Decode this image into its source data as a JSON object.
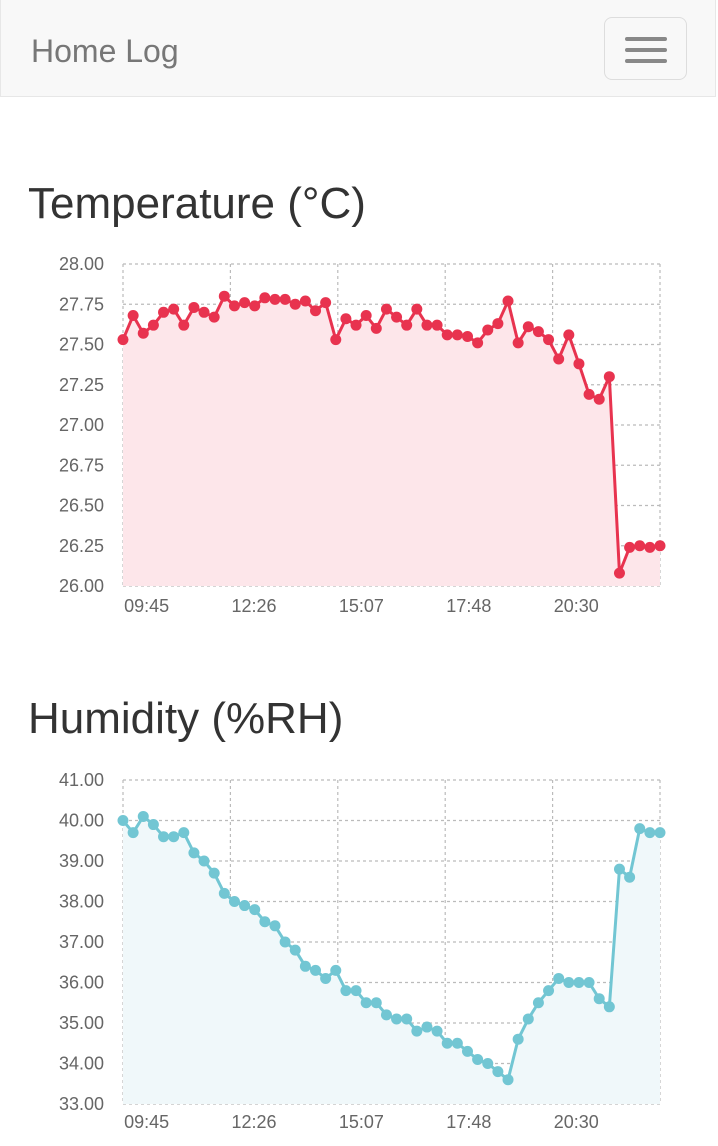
{
  "navbar": {
    "brand": "Home Log",
    "menu_icon": "hamburger-menu-icon"
  },
  "sections": [
    {
      "title": "Temperature (°C)"
    },
    {
      "title": "Humidity (%RH)"
    }
  ],
  "chart_data": [
    {
      "type": "area",
      "title": "Temperature (°C)",
      "xlabel": "",
      "ylabel": "",
      "ylim": [
        26.0,
        28.0
      ],
      "yticks": [
        "28.00",
        "27.75",
        "27.50",
        "27.25",
        "27.00",
        "26.75",
        "26.50",
        "26.25",
        "26.00"
      ],
      "xticks": [
        "09:45",
        "12:26",
        "15:07",
        "17:48",
        "20:30"
      ],
      "grid": true,
      "colors": {
        "line": "#e8334f",
        "fill": "#fde6ea"
      },
      "series": [
        {
          "values": [
            27.53,
            27.68,
            27.57,
            27.62,
            27.7,
            27.72,
            27.62,
            27.73,
            27.7,
            27.67,
            27.8,
            27.74,
            27.76,
            27.74,
            27.79,
            27.78,
            27.78,
            27.75,
            27.77,
            27.71,
            27.76,
            27.53,
            27.66,
            27.62,
            27.68,
            27.6,
            27.72,
            27.67,
            27.62,
            27.72,
            27.62,
            27.62,
            27.56,
            27.56,
            27.55,
            27.51,
            27.59,
            27.63,
            27.77,
            27.51,
            27.61,
            27.58,
            27.53,
            27.41,
            27.56,
            27.38,
            27.19,
            27.16,
            27.3,
            26.08,
            26.24,
            26.25,
            26.24,
            26.25
          ]
        }
      ]
    },
    {
      "type": "area",
      "title": "Humidity (%RH)",
      "xlabel": "",
      "ylabel": "",
      "ylim": [
        33.0,
        41.0
      ],
      "yticks": [
        "41.00",
        "40.00",
        "39.00",
        "38.00",
        "37.00",
        "36.00",
        "35.00",
        "34.00",
        "33.00"
      ],
      "xticks": [
        "09:45",
        "12:26",
        "15:07",
        "17:48",
        "20:30"
      ],
      "grid": true,
      "colors": {
        "line": "#72c6d3",
        "fill": "#f0f8fa"
      },
      "series": [
        {
          "values": [
            40.0,
            39.7,
            40.1,
            39.9,
            39.6,
            39.6,
            39.7,
            39.2,
            39.0,
            38.7,
            38.2,
            38.0,
            37.9,
            37.8,
            37.5,
            37.4,
            37.0,
            36.8,
            36.4,
            36.3,
            36.1,
            36.3,
            35.8,
            35.8,
            35.5,
            35.5,
            35.2,
            35.1,
            35.1,
            34.8,
            34.9,
            34.8,
            34.5,
            34.5,
            34.3,
            34.1,
            34.0,
            33.8,
            33.6,
            34.6,
            35.1,
            35.5,
            35.8,
            36.1,
            36.0,
            36.0,
            36.0,
            35.6,
            35.4,
            38.8,
            38.6,
            39.8,
            39.7,
            39.7
          ]
        }
      ]
    }
  ]
}
